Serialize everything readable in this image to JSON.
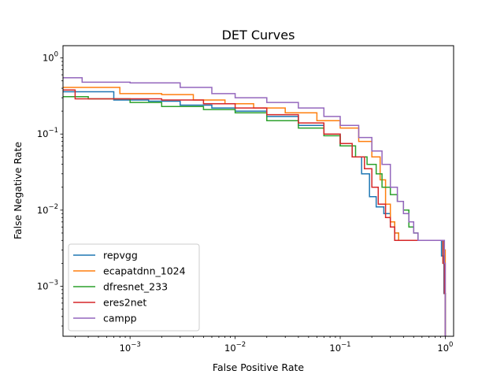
{
  "chart_data": {
    "type": "line",
    "title": "DET Curves",
    "xlabel": "False Positive Rate",
    "ylabel": "False Negative Rate",
    "xscale": "log",
    "yscale": "log",
    "xlim": [
      0.00023,
      1.2
    ],
    "ylim": [
      0.00022,
      1.45
    ],
    "xticks": [
      {
        "value": 0.001,
        "base": "10",
        "exp": "−3"
      },
      {
        "value": 0.01,
        "base": "10",
        "exp": "−2"
      },
      {
        "value": 0.1,
        "base": "10",
        "exp": "−1"
      },
      {
        "value": 1,
        "base": "10",
        "exp": "0"
      }
    ],
    "yticks": [
      {
        "value": 0.001,
        "base": "10",
        "exp": "−3"
      },
      {
        "value": 0.01,
        "base": "10",
        "exp": "−2"
      },
      {
        "value": 0.1,
        "base": "10",
        "exp": "−1"
      },
      {
        "value": 1,
        "base": "10",
        "exp": "0"
      }
    ],
    "grid": false,
    "legend_position": "lower-left",
    "series": [
      {
        "name": "repvgg",
        "color": "#1f77b4",
        "points": [
          [
            0.00023,
            0.36
          ],
          [
            0.0007,
            0.36
          ],
          [
            0.0007,
            0.28
          ],
          [
            0.0015,
            0.27
          ],
          [
            0.003,
            0.24
          ],
          [
            0.006,
            0.22
          ],
          [
            0.01,
            0.2
          ],
          [
            0.02,
            0.17
          ],
          [
            0.04,
            0.13
          ],
          [
            0.07,
            0.1
          ],
          [
            0.1,
            0.07
          ],
          [
            0.13,
            0.05
          ],
          [
            0.16,
            0.03
          ],
          [
            0.19,
            0.015
          ],
          [
            0.22,
            0.011
          ],
          [
            0.26,
            0.009
          ],
          [
            0.3,
            0.007
          ],
          [
            0.33,
            0.005
          ],
          [
            0.36,
            0.004
          ],
          [
            0.85,
            0.004
          ],
          [
            0.92,
            0.0025
          ],
          [
            0.97,
            0.0008
          ],
          [
            1.0,
            0.0003
          ],
          [
            1.0,
            0.00022
          ]
        ]
      },
      {
        "name": "ecapatdnn_1024",
        "color": "#ff7f0e",
        "points": [
          [
            0.00023,
            0.41
          ],
          [
            0.0008,
            0.41
          ],
          [
            0.0008,
            0.34
          ],
          [
            0.002,
            0.33
          ],
          [
            0.004,
            0.28
          ],
          [
            0.008,
            0.25
          ],
          [
            0.015,
            0.22
          ],
          [
            0.03,
            0.19
          ],
          [
            0.06,
            0.15
          ],
          [
            0.1,
            0.12
          ],
          [
            0.15,
            0.08
          ],
          [
            0.2,
            0.05
          ],
          [
            0.24,
            0.025
          ],
          [
            0.27,
            0.012
          ],
          [
            0.3,
            0.007
          ],
          [
            0.33,
            0.005
          ],
          [
            0.36,
            0.004
          ],
          [
            0.95,
            0.004
          ],
          [
            0.98,
            0.003
          ],
          [
            1.0,
            0.001
          ],
          [
            1.0,
            0.0003
          ],
          [
            1.0,
            0.00022
          ]
        ]
      },
      {
        "name": "dfresnet_233",
        "color": "#2ca02c",
        "points": [
          [
            0.00023,
            0.31
          ],
          [
            0.0004,
            0.31
          ],
          [
            0.0004,
            0.29
          ],
          [
            0.001,
            0.29
          ],
          [
            0.001,
            0.26
          ],
          [
            0.002,
            0.25
          ],
          [
            0.002,
            0.23
          ],
          [
            0.005,
            0.21
          ],
          [
            0.01,
            0.19
          ],
          [
            0.02,
            0.15
          ],
          [
            0.04,
            0.12
          ],
          [
            0.07,
            0.095
          ],
          [
            0.1,
            0.07
          ],
          [
            0.14,
            0.05
          ],
          [
            0.18,
            0.04
          ],
          [
            0.22,
            0.03
          ],
          [
            0.25,
            0.02
          ],
          [
            0.3,
            0.016
          ],
          [
            0.35,
            0.013
          ],
          [
            0.4,
            0.01
          ],
          [
            0.45,
            0.006
          ],
          [
            0.5,
            0.005
          ],
          [
            0.55,
            0.004
          ],
          [
            0.9,
            0.004
          ],
          [
            0.95,
            0.002
          ],
          [
            0.98,
            0.0008
          ],
          [
            1.0,
            0.0003
          ],
          [
            1.0,
            0.00022
          ]
        ]
      },
      {
        "name": "eres2net",
        "color": "#d62728",
        "points": [
          [
            0.00023,
            0.38
          ],
          [
            0.0003,
            0.38
          ],
          [
            0.0003,
            0.29
          ],
          [
            0.002,
            0.28
          ],
          [
            0.005,
            0.25
          ],
          [
            0.01,
            0.22
          ],
          [
            0.02,
            0.18
          ],
          [
            0.04,
            0.14
          ],
          [
            0.07,
            0.1
          ],
          [
            0.1,
            0.075
          ],
          [
            0.13,
            0.05
          ],
          [
            0.17,
            0.035
          ],
          [
            0.2,
            0.02
          ],
          [
            0.23,
            0.012
          ],
          [
            0.27,
            0.008
          ],
          [
            0.3,
            0.006
          ],
          [
            0.33,
            0.004
          ],
          [
            0.9,
            0.004
          ],
          [
            0.95,
            0.002
          ],
          [
            0.98,
            0.0008
          ],
          [
            1.0,
            0.0003
          ],
          [
            1.0,
            0.00022
          ]
        ]
      },
      {
        "name": "campp",
        "color": "#9467bd",
        "points": [
          [
            0.00023,
            0.55
          ],
          [
            0.00035,
            0.55
          ],
          [
            0.00035,
            0.48
          ],
          [
            0.001,
            0.47
          ],
          [
            0.003,
            0.41
          ],
          [
            0.006,
            0.34
          ],
          [
            0.01,
            0.3
          ],
          [
            0.02,
            0.26
          ],
          [
            0.04,
            0.22
          ],
          [
            0.07,
            0.17
          ],
          [
            0.1,
            0.13
          ],
          [
            0.15,
            0.09
          ],
          [
            0.2,
            0.06
          ],
          [
            0.25,
            0.04
          ],
          [
            0.3,
            0.02
          ],
          [
            0.35,
            0.013
          ],
          [
            0.4,
            0.009
          ],
          [
            0.45,
            0.007
          ],
          [
            0.5,
            0.005
          ],
          [
            0.55,
            0.004
          ],
          [
            0.95,
            0.004
          ],
          [
            0.98,
            0.002
          ],
          [
            1.0,
            0.0008
          ],
          [
            1.0,
            0.0003
          ],
          [
            1.0,
            0.00022
          ]
        ]
      }
    ]
  }
}
